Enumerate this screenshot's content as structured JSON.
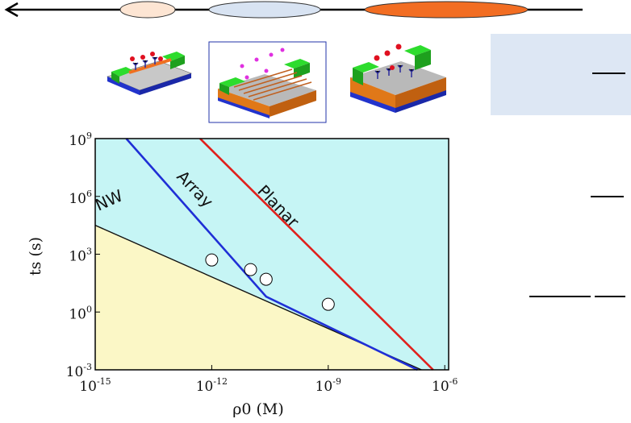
{
  "colors": {
    "background_region": "#c6f5f5",
    "detectable_region": "#fbf7c6",
    "nw_line": "#111111",
    "array_line": "#1f2fd6",
    "planar_line": "#e0201c",
    "side_panel": "#dde7f4"
  },
  "top_bar": {
    "arrow": "left",
    "ovals": [
      {
        "name": "oval-peach",
        "color": "#fde5d3"
      },
      {
        "name": "oval-lightblue",
        "color": "#d8e3f2"
      },
      {
        "name": "oval-orange",
        "color": "#f26d22"
      }
    ]
  },
  "sensor_icons": [
    "nanowire-sensor-icon",
    "array-sensor-icon",
    "planar-sensor-icon"
  ],
  "chart_data": {
    "type": "line",
    "title": "",
    "xlabel": "ρ0 (M)",
    "ylabel": "ts (s)",
    "xscale": "log",
    "yscale": "log",
    "xlim_exp": [
      -15,
      -5.9
    ],
    "ylim_exp": [
      -3,
      9
    ],
    "xticks": [
      {
        "base": "10",
        "exp": "-15",
        "v": -15
      },
      {
        "base": "10",
        "exp": "-12",
        "v": -12
      },
      {
        "base": "10",
        "exp": "-9",
        "v": -9
      },
      {
        "base": "10",
        "exp": "-6",
        "v": -6
      }
    ],
    "yticks": [
      {
        "base": "10",
        "exp": "9",
        "v": 9
      },
      {
        "base": "10",
        "exp": "6",
        "v": 6
      },
      {
        "base": "10",
        "exp": "3",
        "v": 3
      },
      {
        "base": "10",
        "exp": "0",
        "v": 0
      },
      {
        "base": "10",
        "exp": "-3",
        "v": -3
      }
    ],
    "series": [
      {
        "name": "NW",
        "color": "#111111",
        "points": [
          [
            -15,
            4.5
          ],
          [
            -6.6,
            -3
          ]
        ]
      },
      {
        "name": "Array",
        "color": "#1f2fd6",
        "points": [
          [
            -14.2,
            9
          ],
          [
            -10.6,
            0.8
          ],
          [
            -6.7,
            -3
          ]
        ]
      },
      {
        "name": "Planar",
        "color": "#e0201c",
        "points": [
          [
            -12.3,
            9
          ],
          [
            -6.3,
            -3
          ]
        ]
      }
    ],
    "points": [
      [
        -12.0,
        2.7
      ],
      [
        -11.0,
        2.2
      ],
      [
        -10.6,
        1.7
      ],
      [
        -9.0,
        0.4
      ]
    ],
    "regions": [
      {
        "name": "above-nw",
        "color": "#c6f5f5"
      },
      {
        "name": "below-nw",
        "color": "#fbf7c6"
      }
    ],
    "grid": false
  },
  "side_panel": {
    "markers": [
      "top",
      "middle",
      "bottom-left",
      "bottom-right"
    ]
  }
}
